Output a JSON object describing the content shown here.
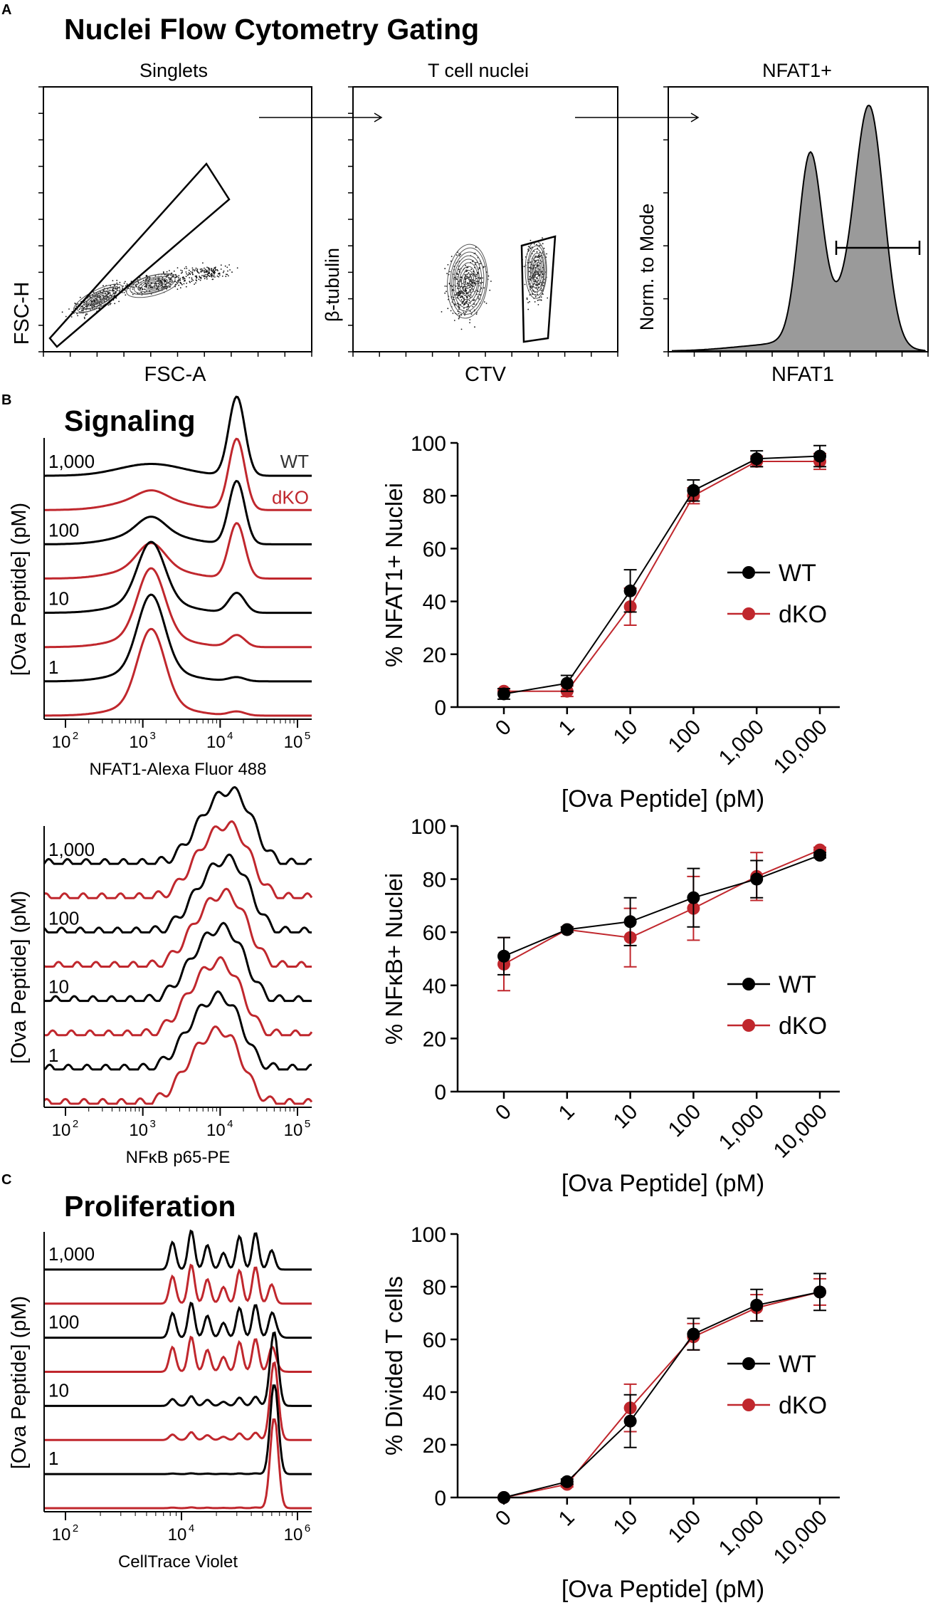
{
  "colors": {
    "wt": "#000000",
    "dko": "#c0272d",
    "hist_fill": "#9a9a9a",
    "axis": "#000000",
    "contour": "#555555"
  },
  "panel_letters": {
    "a": "A",
    "b": "B",
    "c": "C"
  },
  "titles": {
    "gating": "Nuclei Flow Cytometry Gating",
    "signaling": "Signaling",
    "proliferation": "Proliferation"
  },
  "gating": {
    "singlets": {
      "title": "Singlets",
      "xlabel": "FSC-A",
      "ylabel": "FSC-H"
    },
    "tcell": {
      "title": "T cell nuclei",
      "xlabel": "CTV",
      "ylabel": "β-tubulin"
    },
    "nfat": {
      "title": "NFAT1+",
      "xlabel": "NFAT1",
      "ylabel": "Norm. to Mode"
    }
  },
  "overlays": [
    {
      "id": "nfat1",
      "xlabel": "NFAT1-Alexa Fluor 488",
      "ylabel": "[Ova Peptide] (pM)",
      "xticks": [
        "10",
        "10",
        "10",
        "10"
      ],
      "xexp": [
        "2",
        "3",
        "4",
        "5"
      ],
      "doses": [
        "1,000",
        "100",
        "10",
        "1"
      ],
      "legend_wt": "WT",
      "legend_dko": "dKO"
    },
    {
      "id": "nfkb",
      "xlabel": "NFκB p65-PE",
      "ylabel": "[Ova Peptide] (pM)",
      "xticks": [
        "10",
        "10",
        "10",
        "10"
      ],
      "xexp": [
        "2",
        "3",
        "4",
        "5"
      ],
      "doses": [
        "1,000",
        "100",
        "10",
        "1"
      ]
    },
    {
      "id": "ctv",
      "xlabel": "CellTrace Violet",
      "ylabel": "[Ova Peptide] (pM)",
      "xticks": [
        "10",
        "10",
        "10"
      ],
      "xexp": [
        "2",
        "4",
        "6"
      ],
      "doses": [
        "1,000",
        "100",
        "10",
        "1"
      ]
    }
  ],
  "chart_data": [
    {
      "id": "nfat1_pct",
      "type": "line",
      "ylabel": "% NFAT1+ Nuclei",
      "xlabel": "[Ova Peptide] (pM)",
      "categories": [
        "0",
        "1",
        "10",
        "100",
        "1,000",
        "10,000"
      ],
      "ylim": [
        0,
        100
      ],
      "yticks": [
        "0",
        "20",
        "40",
        "60",
        "80",
        "100"
      ],
      "series": [
        {
          "name": "WT",
          "values": [
            5,
            9,
            44,
            82,
            94,
            95
          ],
          "err": [
            2,
            3,
            8,
            4,
            3,
            4
          ]
        },
        {
          "name": "dKO",
          "values": [
            6,
            6,
            38,
            80,
            93,
            93
          ],
          "err": [
            1,
            2,
            7,
            3,
            2,
            3
          ]
        }
      ]
    },
    {
      "id": "nfkb_pct",
      "type": "line",
      "ylabel": "% NFκB+ Nuclei",
      "xlabel": "[Ova Peptide] (pM)",
      "categories": [
        "0",
        "1",
        "10",
        "100",
        "1,000",
        "10,000"
      ],
      "ylim": [
        0,
        100
      ],
      "yticks": [
        "0",
        "20",
        "40",
        "60",
        "80",
        "100"
      ],
      "series": [
        {
          "name": "WT",
          "values": [
            51,
            61,
            64,
            73,
            80,
            89
          ],
          "err": [
            7,
            1,
            9,
            11,
            7,
            1
          ]
        },
        {
          "name": "dKO",
          "values": [
            48,
            61,
            58,
            69,
            81,
            91
          ],
          "err": [
            10,
            1,
            11,
            12,
            9,
            1
          ]
        }
      ]
    },
    {
      "id": "divided_pct",
      "type": "line",
      "ylabel": "% Divided T cells",
      "xlabel": "[Ova Peptide] (pM)",
      "categories": [
        "0",
        "1",
        "10",
        "100",
        "1,000",
        "10,000"
      ],
      "ylim": [
        0,
        100
      ],
      "yticks": [
        "0",
        "20",
        "40",
        "60",
        "80",
        "100"
      ],
      "series": [
        {
          "name": "WT",
          "values": [
            0,
            6,
            29,
            62,
            73,
            78
          ],
          "err": [
            0,
            1,
            10,
            6,
            6,
            7
          ]
        },
        {
          "name": "dKO",
          "values": [
            0,
            5,
            34,
            61,
            72,
            78
          ],
          "err": [
            0,
            1,
            9,
            5,
            5,
            5
          ]
        }
      ]
    }
  ]
}
